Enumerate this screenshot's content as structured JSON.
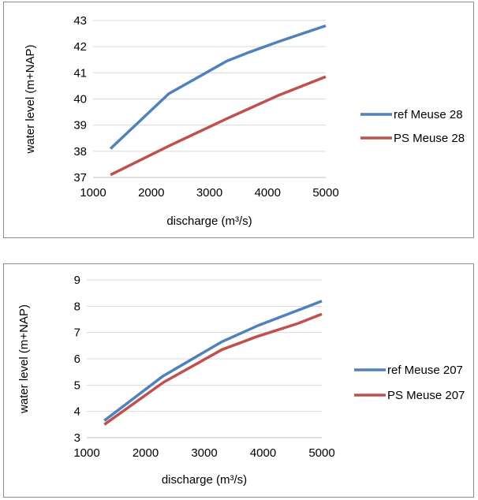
{
  "chart_data": [
    {
      "type": "line",
      "xlabel": "discharge (m³/s)",
      "ylabel": "water level (m+NAP)",
      "xlim": [
        1000,
        5000
      ],
      "ylim": [
        37,
        43
      ],
      "xticks": [
        1000,
        2000,
        3000,
        4000,
        5000
      ],
      "yticks": [
        37,
        38,
        39,
        40,
        41,
        42,
        43
      ],
      "grid": "horizontal",
      "legend": "right",
      "series": [
        {
          "name": "ref Meuse 28",
          "color": "#4f81bd",
          "x": [
            1300,
            2300,
            3300,
            3700,
            4200,
            5000
          ],
          "y": [
            38.1,
            40.2,
            41.45,
            41.8,
            42.2,
            42.8
          ]
        },
        {
          "name": "PS Meuse 28",
          "color": "#c0504d",
          "x": [
            1300,
            2300,
            3300,
            3700,
            4200,
            5000
          ],
          "y": [
            37.1,
            38.2,
            39.25,
            39.65,
            40.15,
            40.85
          ]
        }
      ]
    },
    {
      "type": "line",
      "xlabel": "discharge (m³/s)",
      "ylabel": "water level (m+NAP)",
      "xlim": [
        1000,
        5000
      ],
      "ylim": [
        3,
        9
      ],
      "xticks": [
        1000,
        2000,
        3000,
        4000,
        5000
      ],
      "yticks": [
        3,
        4,
        5,
        6,
        7,
        8,
        9
      ],
      "grid": "horizontal",
      "legend": "right",
      "series": [
        {
          "name": "ref Meuse 207",
          "color": "#4f81bd",
          "x": [
            1300,
            2300,
            3300,
            3900,
            4600,
            5000
          ],
          "y": [
            3.65,
            5.35,
            6.65,
            7.25,
            7.85,
            8.2
          ]
        },
        {
          "name": "PS Meuse 207",
          "color": "#c0504d",
          "x": [
            1300,
            2300,
            3300,
            3900,
            4600,
            5000
          ],
          "y": [
            3.5,
            5.1,
            6.35,
            6.85,
            7.35,
            7.7
          ]
        }
      ]
    }
  ]
}
